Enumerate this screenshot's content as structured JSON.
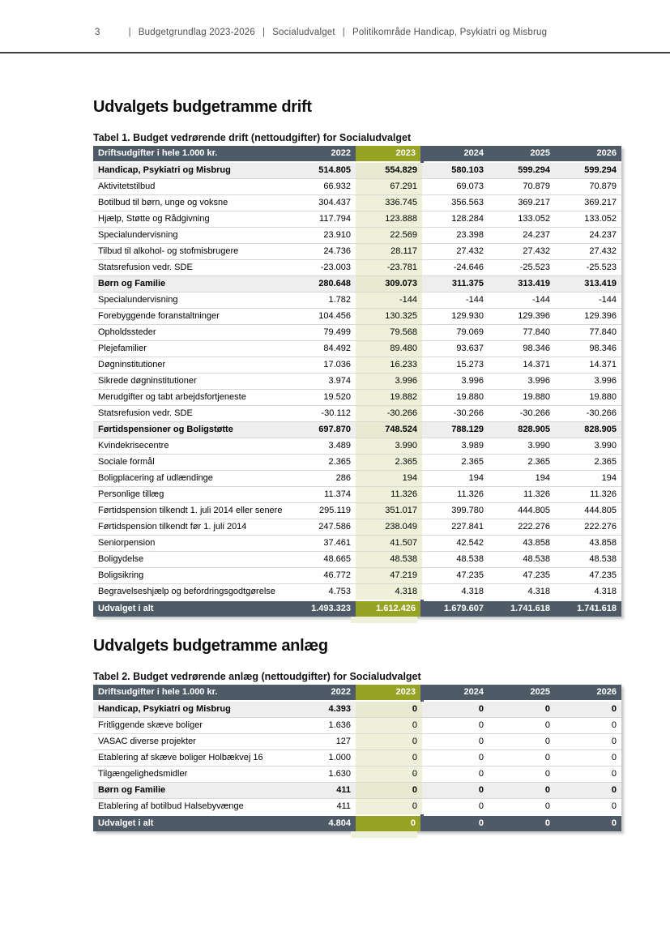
{
  "colors": {
    "table_header_bg": "#4e5b66",
    "footer_bg": "#4e5b66",
    "highlight_green": "#96a325",
    "highlight_tint": "#eef0da",
    "group_row_bg": "#eeeeef",
    "header_text_gray": "#4f4f4f"
  },
  "header": {
    "page_number": "3",
    "separator": "|",
    "segments": [
      "Budgetgrundlag 2023-2026",
      "Socialudvalget",
      "Politikområde Handicap, Psykiatri og Misbrug"
    ]
  },
  "sections": [
    {
      "title": "Udvalgets budgetramme drift",
      "caption": "Tabel 1. Budget vedrørende drift (nettoudgifter) for Socialudvalget",
      "table": {
        "columns": [
          "Driftsudgifter i hele 1.000 kr.",
          "2022",
          "2023",
          "2024",
          "2025",
          "2026"
        ],
        "highlight_col_index": 2,
        "rows": [
          {
            "label": "Handicap, Psykiatri og Misbrug",
            "bold": true,
            "values": [
              "514.805",
              "554.829",
              "580.103",
              "599.294",
              "599.294"
            ]
          },
          {
            "label": "Aktivitetstilbud",
            "bold": false,
            "values": [
              "66.932",
              "67.291",
              "69.073",
              "70.879",
              "70.879"
            ]
          },
          {
            "label": "Botilbud til børn, unge og voksne",
            "bold": false,
            "values": [
              "304.437",
              "336.745",
              "356.563",
              "369.217",
              "369.217"
            ]
          },
          {
            "label": "Hjælp, Støtte og Rådgivning",
            "bold": false,
            "values": [
              "117.794",
              "123.888",
              "128.284",
              "133.052",
              "133.052"
            ]
          },
          {
            "label": "Specialundervisning",
            "bold": false,
            "values": [
              "23.910",
              "22.569",
              "23.398",
              "24.237",
              "24.237"
            ]
          },
          {
            "label": "Tilbud til alkohol- og stofmisbrugere",
            "bold": false,
            "values": [
              "24.736",
              "28.117",
              "27.432",
              "27.432",
              "27.432"
            ]
          },
          {
            "label": "Statsrefusion vedr. SDE",
            "bold": false,
            "values": [
              "-23.003",
              "-23.781",
              "-24.646",
              "-25.523",
              "-25.523"
            ]
          },
          {
            "label": "Børn og Familie",
            "bold": true,
            "values": [
              "280.648",
              "309.073",
              "311.375",
              "313.419",
              "313.419"
            ]
          },
          {
            "label": "Specialundervisning",
            "bold": false,
            "values": [
              "1.782",
              "-144",
              "-144",
              "-144",
              "-144"
            ]
          },
          {
            "label": "Forebyggende foranstaltninger",
            "bold": false,
            "values": [
              "104.456",
              "130.325",
              "129.930",
              "129.396",
              "129.396"
            ]
          },
          {
            "label": "Opholdssteder",
            "bold": false,
            "values": [
              "79.499",
              "79.568",
              "79.069",
              "77.840",
              "77.840"
            ]
          },
          {
            "label": "Plejefamilier",
            "bold": false,
            "values": [
              "84.492",
              "89.480",
              "93.637",
              "98.346",
              "98.346"
            ]
          },
          {
            "label": "Døgninstitutioner",
            "bold": false,
            "values": [
              "17.036",
              "16.233",
              "15.273",
              "14.371",
              "14.371"
            ]
          },
          {
            "label": "Sikrede døgninstitutioner",
            "bold": false,
            "values": [
              "3.974",
              "3.996",
              "3.996",
              "3.996",
              "3.996"
            ]
          },
          {
            "label": "Merudgifter og tabt arbejdsfortjeneste",
            "bold": false,
            "values": [
              "19.520",
              "19.882",
              "19.880",
              "19.880",
              "19.880"
            ]
          },
          {
            "label": "Statsrefusion vedr. SDE",
            "bold": false,
            "values": [
              "-30.112",
              "-30.266",
              "-30.266",
              "-30.266",
              "-30.266"
            ]
          },
          {
            "label": "Førtidspensioner og Boligstøtte",
            "bold": true,
            "values": [
              "697.870",
              "748.524",
              "788.129",
              "828.905",
              "828.905"
            ]
          },
          {
            "label": "Kvindekrisecentre",
            "bold": false,
            "values": [
              "3.489",
              "3.990",
              "3.989",
              "3.990",
              "3.990"
            ]
          },
          {
            "label": "Sociale formål",
            "bold": false,
            "values": [
              "2.365",
              "2.365",
              "2.365",
              "2.365",
              "2.365"
            ]
          },
          {
            "label": "Boligplacering af udlændinge",
            "bold": false,
            "values": [
              "286",
              "194",
              "194",
              "194",
              "194"
            ]
          },
          {
            "label": "Personlige tillæg",
            "bold": false,
            "values": [
              "11.374",
              "11.326",
              "11.326",
              "11.326",
              "11.326"
            ]
          },
          {
            "label": "Førtidspension tilkendt 1. juli 2014 eller senere",
            "bold": false,
            "values": [
              "295.119",
              "351.017",
              "399.780",
              "444.805",
              "444.805"
            ]
          },
          {
            "label": "Førtidspension tilkendt før 1. juli 2014",
            "bold": false,
            "values": [
              "247.586",
              "238.049",
              "227.841",
              "222.276",
              "222.276"
            ]
          },
          {
            "label": "Seniorpension",
            "bold": false,
            "values": [
              "37.461",
              "41.507",
              "42.542",
              "43.858",
              "43.858"
            ]
          },
          {
            "label": "Boligydelse",
            "bold": false,
            "values": [
              "48.665",
              "48.538",
              "48.538",
              "48.538",
              "48.538"
            ]
          },
          {
            "label": "Boligsikring",
            "bold": false,
            "values": [
              "46.772",
              "47.219",
              "47.235",
              "47.235",
              "47.235"
            ]
          },
          {
            "label": "Begravelseshjælp og befordringsgodtgørelse",
            "bold": false,
            "values": [
              "4.753",
              "4.318",
              "4.318",
              "4.318",
              "4.318"
            ]
          }
        ],
        "footer": {
          "label": "Udvalget i alt",
          "values": [
            "1.493.323",
            "1.612.426",
            "1.679.607",
            "1.741.618",
            "1.741.618"
          ]
        }
      }
    },
    {
      "title": "Udvalgets budgetramme anlæg",
      "caption": "Tabel 2. Budget vedrørende anlæg (nettoudgifter) for Socialudvalget",
      "table": {
        "columns": [
          "Driftsudgifter i hele 1.000 kr.",
          "2022",
          "2023",
          "2024",
          "2025",
          "2026"
        ],
        "highlight_col_index": 2,
        "rows": [
          {
            "label": "Handicap, Psykiatri og Misbrug",
            "bold": true,
            "values": [
              "4.393",
              "0",
              "0",
              "0",
              "0"
            ]
          },
          {
            "label": "Fritliggende skæve boliger",
            "bold": false,
            "values": [
              "1.636",
              "0",
              "0",
              "0",
              "0"
            ]
          },
          {
            "label": "VASAC diverse projekter",
            "bold": false,
            "values": [
              "127",
              "0",
              "0",
              "0",
              "0"
            ]
          },
          {
            "label": "Etablering af skæve boliger Holbækvej 16",
            "bold": false,
            "values": [
              "1.000",
              "0",
              "0",
              "0",
              "0"
            ]
          },
          {
            "label": "Tilgængelighedsmidler",
            "bold": false,
            "values": [
              "1.630",
              "0",
              "0",
              "0",
              "0"
            ]
          },
          {
            "label": "Børn og Familie",
            "bold": true,
            "values": [
              "411",
              "0",
              "0",
              "0",
              "0"
            ]
          },
          {
            "label": "Etablering af botilbud Halsebyvænge",
            "bold": false,
            "values": [
              "411",
              "0",
              "0",
              "0",
              "0"
            ]
          }
        ],
        "footer": {
          "label": "Udvalget i alt",
          "values": [
            "4.804",
            "0",
            "0",
            "0",
            "0"
          ]
        }
      }
    }
  ]
}
